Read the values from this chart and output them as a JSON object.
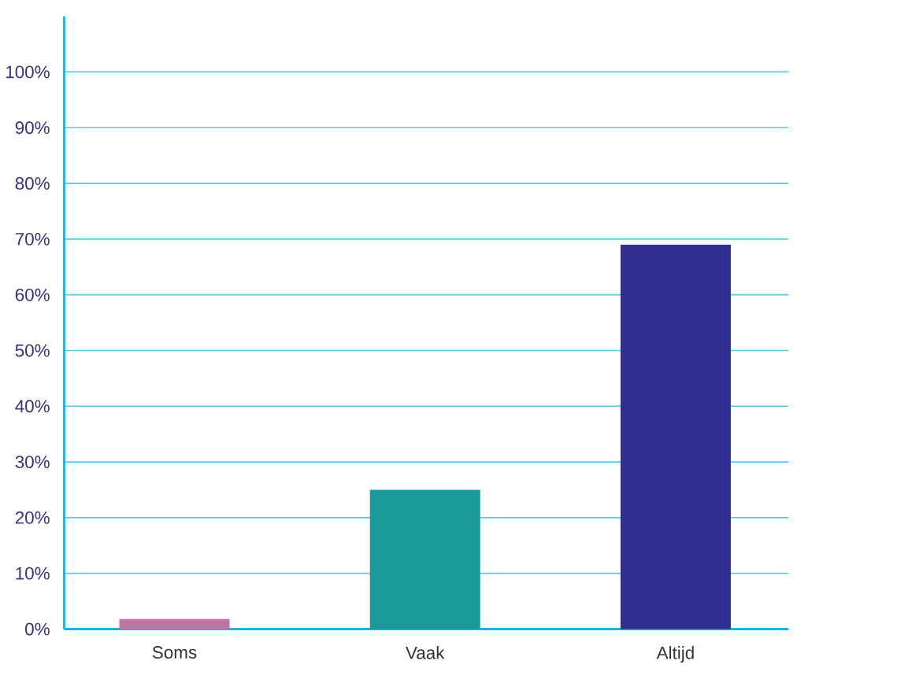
{
  "chart_data": {
    "type": "bar",
    "categories": [
      "Soms",
      "Vaak",
      "Altijd"
    ],
    "values": [
      1.8,
      25,
      69
    ],
    "colors": [
      "#c4739e",
      "#1b9898",
      "#2e2f8f"
    ],
    "ylim": [
      0,
      110
    ],
    "yticks": [
      {
        "value": 0,
        "label": "0%"
      },
      {
        "value": 10,
        "label": "10%"
      },
      {
        "value": 20,
        "label": "20%"
      },
      {
        "value": 30,
        "label": "30%"
      },
      {
        "value": 40,
        "label": "40%"
      },
      {
        "value": 50,
        "label": "50%"
      },
      {
        "value": 60,
        "label": "60%"
      },
      {
        "value": 70,
        "label": "70%"
      },
      {
        "value": 80,
        "label": "80%"
      },
      {
        "value": 90,
        "label": "90%"
      },
      {
        "value": 100,
        "label": "100%"
      }
    ],
    "grid": "y"
  }
}
